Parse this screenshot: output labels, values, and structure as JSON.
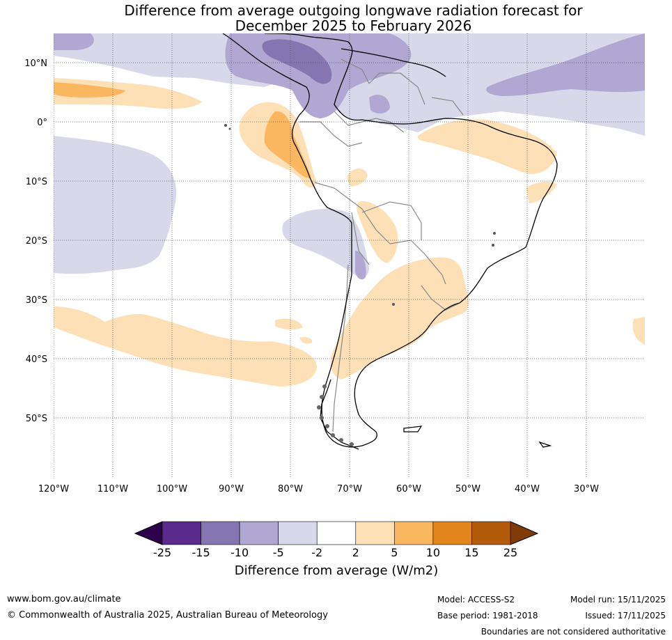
{
  "title": {
    "line1": "Difference from average outgoing longwave radiation forecast for",
    "line2": "December 2025 to February 2026"
  },
  "axes": {
    "lon_labels": [
      "120°W",
      "110°W",
      "100°W",
      "90°W",
      "80°W",
      "70°W",
      "60°W",
      "50°W",
      "40°W",
      "30°W"
    ],
    "lat_labels": [
      "10°N",
      "0°",
      "10°S",
      "20°S",
      "30°S",
      "40°S",
      "50°S"
    ]
  },
  "legend": {
    "ticks": [
      "-25",
      "-15",
      "-10",
      "-5",
      "-2",
      "2",
      "5",
      "10",
      "15",
      "25"
    ],
    "colors": [
      "#5b2a8c",
      "#8575b0",
      "#b0a7d2",
      "#d8d8ea",
      "#ffffff",
      "#fde0b5",
      "#fbb760",
      "#e2851a",
      "#b35a0b"
    ],
    "extend_low_color": "#2d004b",
    "extend_high_color": "#7f3b08",
    "label": "Difference from average (W/m2)"
  },
  "footer": {
    "url": "www.bom.gov.au/climate",
    "copyright": "© Commonwealth of Australia 2025, Australian Bureau of Meteorology",
    "model": "Model: ACCESS-S2",
    "base_period": "Base period: 1981-2018",
    "model_run": "Model run: 15/11/2025",
    "issued": "Issued: 17/11/2025",
    "disclaimer": "Boundaries are not considered authoritative"
  }
}
